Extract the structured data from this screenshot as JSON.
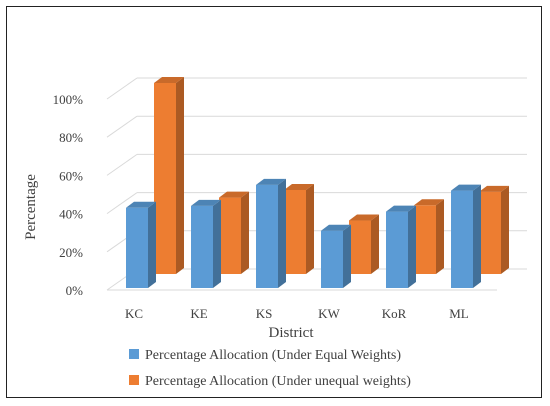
{
  "chart_data": {
    "type": "bar",
    "title": "",
    "xlabel": "District",
    "ylabel": "Percentage",
    "categories": [
      "KC",
      "KE",
      "KS",
      "KW",
      "KoR",
      "ML"
    ],
    "series": [
      {
        "name": "Percentage Allocation (Under Equal Weights)",
        "values": [
          42,
          43,
          54,
          30,
          40,
          51
        ],
        "color": "#5b9bd5"
      },
      {
        "name": "Percentage Allocation (Under unequal weights)",
        "values": [
          100,
          40,
          44,
          28,
          36,
          43
        ],
        "color": "#ed7d31"
      }
    ],
    "ylim": [
      0,
      100
    ],
    "yticks": [
      0,
      20,
      40,
      60,
      80,
      100
    ],
    "ytick_labels": [
      "0%",
      "20%",
      "40%",
      "60%",
      "80%",
      "100%"
    ],
    "grid": true,
    "legend": "bottom",
    "style": "3d-column"
  }
}
